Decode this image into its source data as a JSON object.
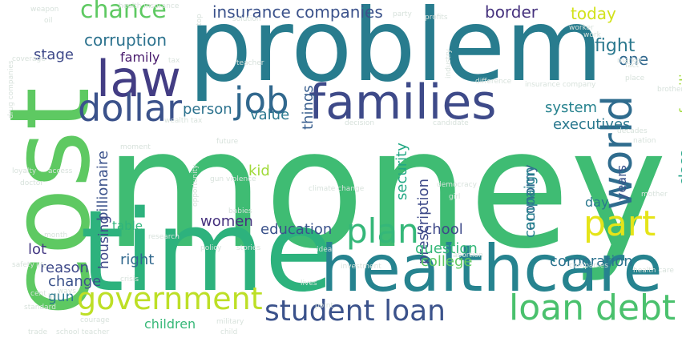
{
  "words": [
    {
      "text": "money",
      "color": "#3fbc73",
      "vertical": false
    },
    {
      "text": "problem",
      "color": "#287c8e",
      "vertical": false
    },
    {
      "text": "cost",
      "color": "#5ec962",
      "vertical": true
    },
    {
      "text": "time",
      "color": "#2db27d",
      "vertical": false
    },
    {
      "text": "healthcare",
      "color": "#26838f",
      "vertical": false
    },
    {
      "text": "families",
      "color": "#3e4a89",
      "vertical": false
    },
    {
      "text": "world",
      "color": "#2f6c8e",
      "vertical": true
    },
    {
      "text": "law",
      "color": "#433d84",
      "vertical": false
    },
    {
      "text": "job",
      "color": "#31688e",
      "vertical": false
    },
    {
      "text": "dollar",
      "color": "#3b528b",
      "vertical": false
    },
    {
      "text": "plan",
      "color": "#35b779",
      "vertical": false
    },
    {
      "text": "part",
      "color": "#e5e419",
      "vertical": false
    },
    {
      "text": "government",
      "color": "#bddf26",
      "vertical": false
    },
    {
      "text": "student loan",
      "color": "#3b528b",
      "vertical": false
    },
    {
      "text": "loan debt",
      "color": "#4ac16d",
      "vertical": false
    },
    {
      "text": "chance",
      "color": "#5ec962",
      "vertical": false
    },
    {
      "text": "corruption",
      "color": "#2c728e",
      "vertical": false
    },
    {
      "text": "insurance companies",
      "color": "#3b528b",
      "vertical": false
    },
    {
      "text": "border",
      "color": "#46327e",
      "vertical": false
    },
    {
      "text": "today",
      "color": "#d2e21b",
      "vertical": false
    },
    {
      "text": "fight",
      "color": "#2a788e",
      "vertical": false
    },
    {
      "text": "stage",
      "color": "#3e4989",
      "vertical": false
    },
    {
      "text": "family",
      "color": "#481a6c",
      "vertical": false
    },
    {
      "text": "one",
      "color": "#31688e",
      "vertical": false
    },
    {
      "text": "things",
      "color": "#365c8d",
      "vertical": true
    },
    {
      "text": "person",
      "color": "#2c728e",
      "vertical": false
    },
    {
      "text": "value",
      "color": "#2a788e",
      "vertical": false
    },
    {
      "text": "system",
      "color": "#26828e",
      "vertical": false
    },
    {
      "text": "executives",
      "color": "#2a788e",
      "vertical": false
    },
    {
      "text": "families",
      "color": "#a0da39",
      "vertical": true
    },
    {
      "text": "class",
      "color": "#20a386",
      "vertical": true
    },
    {
      "text": "billionaire",
      "color": "#3b528b",
      "vertical": true
    },
    {
      "text": "housing",
      "color": "#3e4989",
      "vertical": true
    },
    {
      "text": "kid",
      "color": "#a0da39",
      "vertical": false
    },
    {
      "text": "security",
      "color": "#22a884",
      "vertical": true
    },
    {
      "text": "prescription",
      "color": "#3e4a89",
      "vertical": true
    },
    {
      "text": "economy",
      "color": "#31688e",
      "vertical": true
    },
    {
      "text": "campaign",
      "color": "#26828e",
      "vertical": true
    },
    {
      "text": "years",
      "color": "#3b528b",
      "vertical": true
    },
    {
      "text": "day",
      "color": "#2a788e",
      "vertical": false
    },
    {
      "text": "women",
      "color": "#46327e",
      "vertical": false
    },
    {
      "text": "table",
      "color": "#2fb47c",
      "vertical": false
    },
    {
      "text": "education",
      "color": "#3b528b",
      "vertical": false
    },
    {
      "text": "school",
      "color": "#3e4989",
      "vertical": false
    },
    {
      "text": "question",
      "color": "#35b779",
      "vertical": false
    },
    {
      "text": "college",
      "color": "#5ec962",
      "vertical": false
    },
    {
      "text": "lot",
      "color": "#443983",
      "vertical": false
    },
    {
      "text": "reason",
      "color": "#3e4989",
      "vertical": false
    },
    {
      "text": "right",
      "color": "#31688e",
      "vertical": false
    },
    {
      "text": "change",
      "color": "#3b528b",
      "vertical": false
    },
    {
      "text": "corporation",
      "color": "#2c728e",
      "vertical": false
    },
    {
      "text": "gun",
      "color": "#2a788e",
      "vertical": false
    },
    {
      "text": "children",
      "color": "#37b878",
      "vertical": false
    },
    {
      "text": "health insurance",
      "color": "#d8e2dc",
      "vertical": false
    },
    {
      "text": "weapon",
      "color": "#d8e2dc",
      "vertical": false
    },
    {
      "text": "oil",
      "color": "#d8e2dc",
      "vertical": false
    },
    {
      "text": "top",
      "color": "#d8e2dc",
      "vertical": true
    },
    {
      "text": "party",
      "color": "#d8e2dc",
      "vertical": false
    },
    {
      "text": "profits",
      "color": "#d8e2dc",
      "vertical": false
    },
    {
      "text": "solution",
      "color": "#d8e2dc",
      "vertical": false
    },
    {
      "text": "coverage",
      "color": "#d8e2dc",
      "vertical": false
    },
    {
      "text": "tax",
      "color": "#d8e2dc",
      "vertical": false
    },
    {
      "text": "teacher",
      "color": "#d8e2dc",
      "vertical": false
    },
    {
      "text": "industry",
      "color": "#d8e2dc",
      "vertical": true
    },
    {
      "text": "difference",
      "color": "#d8e2dc",
      "vertical": false
    },
    {
      "text": "insurance company",
      "color": "#d8e2dc",
      "vertical": false
    },
    {
      "text": "market",
      "color": "#d8e2dc",
      "vertical": false
    },
    {
      "text": "fact",
      "color": "#d8e2dc",
      "vertical": false
    },
    {
      "text": "place",
      "color": "#d8e2dc",
      "vertical": false
    },
    {
      "text": "brother",
      "color": "#d8e2dc",
      "vertical": false
    },
    {
      "text": "wealth tax",
      "color": "#d8e2dc",
      "vertical": false
    },
    {
      "text": "future",
      "color": "#d8e2dc",
      "vertical": false
    },
    {
      "text": "decision",
      "color": "#d8e2dc",
      "vertical": false
    },
    {
      "text": "candidate",
      "color": "#d8e2dc",
      "vertical": false
    },
    {
      "text": "decades",
      "color": "#d8e2dc",
      "vertical": false
    },
    {
      "text": "nation",
      "color": "#d8e2dc",
      "vertical": false
    },
    {
      "text": "drug companies",
      "color": "#d8e2dc",
      "vertical": true
    },
    {
      "text": "moment",
      "color": "#d8e2dc",
      "vertical": false
    },
    {
      "text": "loyalty",
      "color": "#d8e2dc",
      "vertical": false
    },
    {
      "text": "access",
      "color": "#d8e2dc",
      "vertical": false
    },
    {
      "text": "doctor",
      "color": "#d8e2dc",
      "vertical": false
    },
    {
      "text": "gun violence",
      "color": "#d8e2dc",
      "vertical": false
    },
    {
      "text": "climate change",
      "color": "#d8e2dc",
      "vertical": false
    },
    {
      "text": "democracy",
      "color": "#d8e2dc",
      "vertical": false
    },
    {
      "text": "girl",
      "color": "#d8e2dc",
      "vertical": false
    },
    {
      "text": "babies",
      "color": "#d8e2dc",
      "vertical": false
    },
    {
      "text": "research",
      "color": "#d8e2dc",
      "vertical": false
    },
    {
      "text": "policy",
      "color": "#d8e2dc",
      "vertical": false
    },
    {
      "text": "stories",
      "color": "#d8e2dc",
      "vertical": false
    },
    {
      "text": "idea",
      "color": "#d8e2dc",
      "vertical": false
    },
    {
      "text": "month",
      "color": "#d8e2dc",
      "vertical": false
    },
    {
      "text": "safety",
      "color": "#d8e2dc",
      "vertical": false
    },
    {
      "text": "investment",
      "color": "#d8e2dc",
      "vertical": false
    },
    {
      "text": "abortion",
      "color": "#d8e2dc",
      "vertical": false
    },
    {
      "text": "companies",
      "color": "#d8e2dc",
      "vertical": false
    },
    {
      "text": "health care",
      "color": "#d8e2dc",
      "vertical": false
    },
    {
      "text": "crisis",
      "color": "#d8e2dc",
      "vertical": false
    },
    {
      "text": "bill",
      "color": "#d8e2dc",
      "vertical": false
    },
    {
      "text": "ways",
      "color": "#d8e2dc",
      "vertical": false
    },
    {
      "text": "lives",
      "color": "#d8e2dc",
      "vertical": false
    },
    {
      "text": "point",
      "color": "#d8e2dc",
      "vertical": false
    },
    {
      "text": "standard",
      "color": "#d8e2dc",
      "vertical": false
    },
    {
      "text": "courage",
      "color": "#d8e2dc",
      "vertical": false
    },
    {
      "text": "military",
      "color": "#d8e2dc",
      "vertical": false
    },
    {
      "text": "trade",
      "color": "#d8e2dc",
      "vertical": false
    },
    {
      "text": "school teacher",
      "color": "#d8e2dc",
      "vertical": false
    },
    {
      "text": "child",
      "color": "#d8e2dc",
      "vertical": false
    },
    {
      "text": "cent",
      "color": "#d8e2dc",
      "vertical": false
    },
    {
      "text": "mother",
      "color": "#d8e2dc",
      "vertical": false
    },
    {
      "text": "opportunity",
      "color": "#d8e2dc",
      "vertical": true
    },
    {
      "text": "worker",
      "color": "#d8e2dc",
      "vertical": false
    },
    {
      "text": "work",
      "color": "#d8e2dc",
      "vertical": false
    },
    {
      "text": "life",
      "color": "#d8e2dc",
      "vertical": false
    }
  ]
}
